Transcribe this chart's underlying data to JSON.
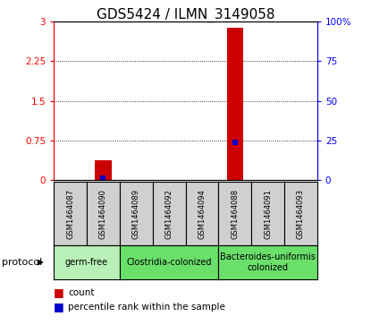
{
  "title": "GDS5424 / ILMN_3149058",
  "samples": [
    "GSM1464087",
    "GSM1464090",
    "GSM1464089",
    "GSM1464092",
    "GSM1464094",
    "GSM1464088",
    "GSM1464091",
    "GSM1464093"
  ],
  "counts": [
    0,
    0.38,
    0,
    0,
    0,
    2.88,
    0,
    0
  ],
  "percentiles_left": [
    0,
    0.05,
    0,
    0,
    0,
    0.72,
    0,
    0
  ],
  "ylim_left": [
    0,
    3
  ],
  "ylim_right": [
    0,
    100
  ],
  "yticks_left": [
    0,
    0.75,
    1.5,
    2.25,
    3
  ],
  "yticks_right": [
    0,
    25,
    50,
    75,
    100
  ],
  "ytick_labels_right": [
    "0",
    "25",
    "50",
    "75",
    "100%"
  ],
  "groups": [
    {
      "label": "germ-free",
      "start": 0,
      "end": 2,
      "color": "#b8f0b8"
    },
    {
      "label": "Clostridia-colonized",
      "start": 2,
      "end": 5,
      "color": "#6ae06a"
    },
    {
      "label": "Bacteroides-uniformis\ncolonized",
      "start": 5,
      "end": 8,
      "color": "#6ae06a"
    }
  ],
  "bar_color": "#cc0000",
  "dot_color": "#0000cc",
  "bar_width": 0.5,
  "dot_size": 18,
  "background_color": "#ffffff",
  "cell_bg_color": "#d0d0d0",
  "title_fontsize": 11,
  "tick_fontsize": 7.5,
  "sample_fontsize": 6,
  "group_fontsize": 7,
  "legend_fontsize": 7.5,
  "protocol_fontsize": 8
}
